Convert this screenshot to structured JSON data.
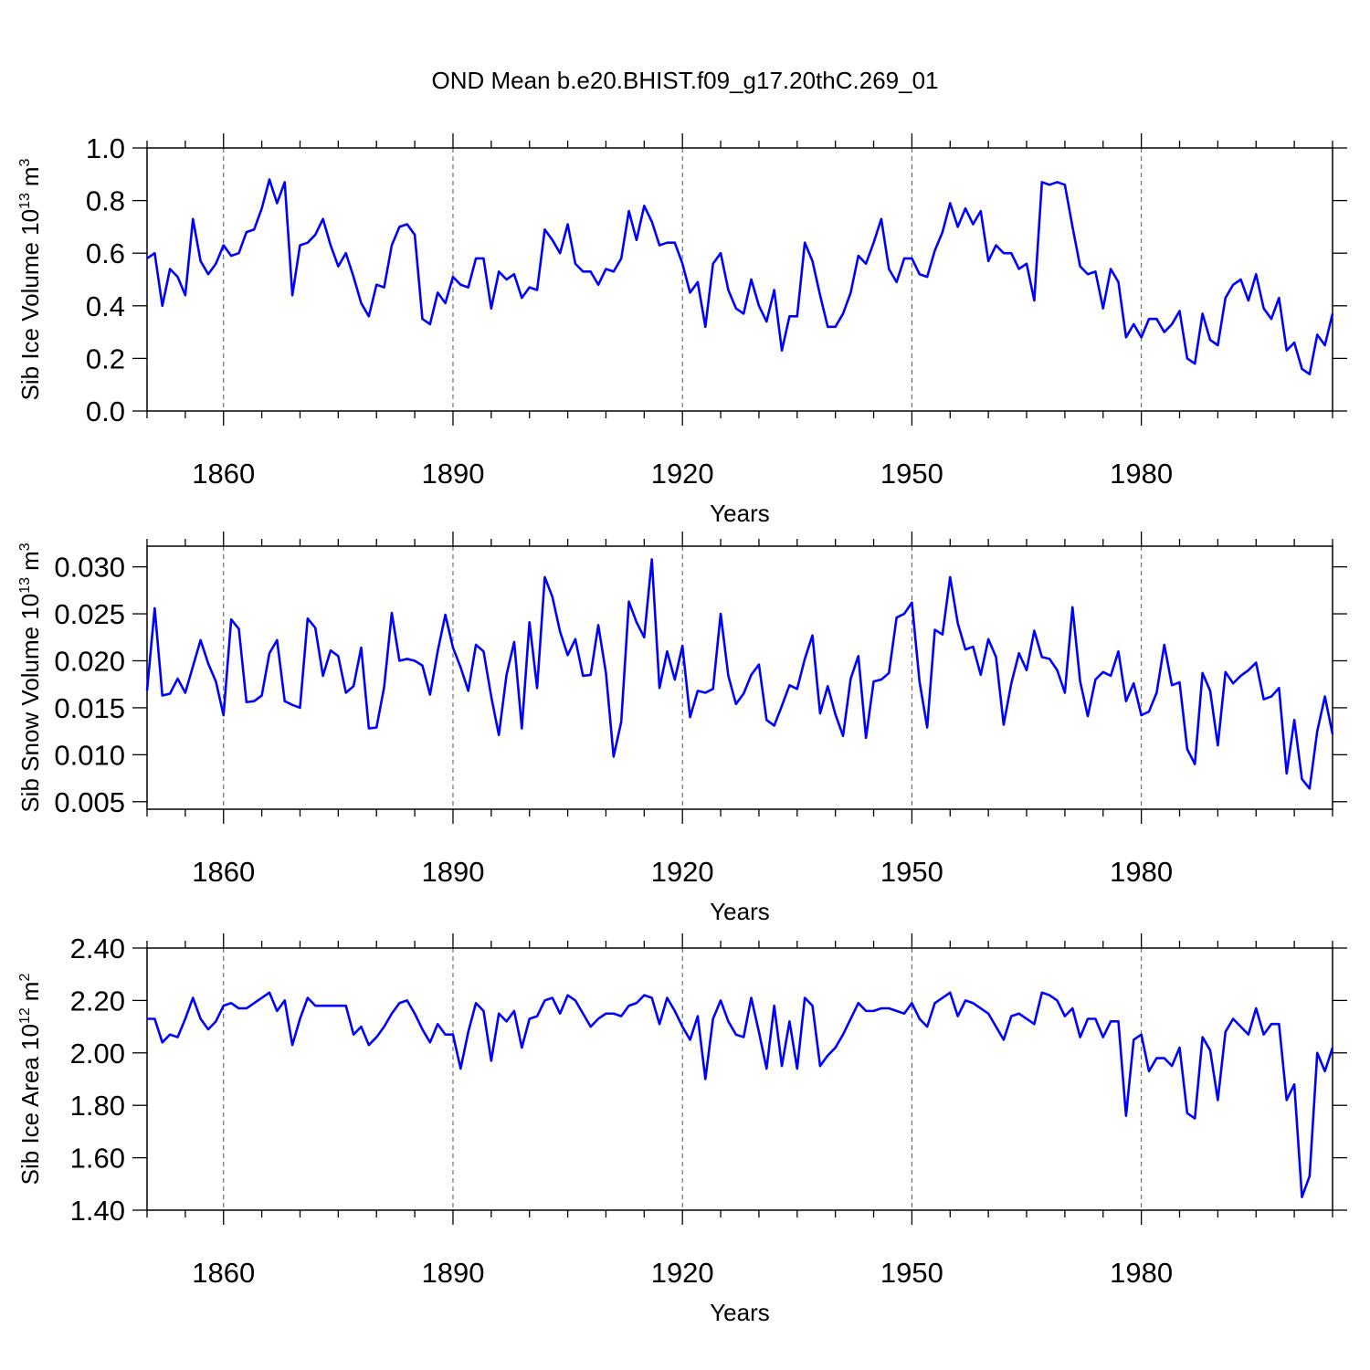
{
  "chart_data": [
    {
      "type": "line",
      "title": "OND Mean b.e20.BHIST.f09_g17.20thC.269_01",
      "xlabel": "Years",
      "ylabel": {
        "text": "Sib Ice Volume 10",
        "exponent": "13",
        "unit": "m",
        "unit_exponent": "3"
      },
      "color": "#0000ff",
      "xgrid": true,
      "xlim": [
        1850,
        2005
      ],
      "ylim": [
        0,
        1
      ],
      "xticks": [
        1860,
        1890,
        1920,
        1950,
        1980
      ],
      "xminorticks": [
        1850,
        1855,
        1865,
        1870,
        1875,
        1880,
        1885,
        1895,
        1900,
        1905,
        1910,
        1915,
        1925,
        1930,
        1935,
        1940,
        1945,
        1955,
        1960,
        1965,
        1970,
        1975,
        1985,
        1990,
        1995,
        2000,
        2005
      ],
      "yticks": [
        {
          "value": 0,
          "label": "0.0"
        },
        0.2,
        0.4,
        0.6,
        0.8,
        {
          "value": 1,
          "label": "1.0"
        }
      ],
      "x": [
        1850,
        1851,
        1852,
        1853,
        1854,
        1855,
        1856,
        1857,
        1858,
        1859,
        1860,
        1861,
        1862,
        1863,
        1864,
        1865,
        1866,
        1867,
        1868,
        1869,
        1870,
        1871,
        1872,
        1873,
        1874,
        1875,
        1876,
        1877,
        1878,
        1879,
        1880,
        1881,
        1882,
        1883,
        1884,
        1885,
        1886,
        1887,
        1888,
        1889,
        1890,
        1891,
        1892,
        1893,
        1894,
        1895,
        1896,
        1897,
        1898,
        1899,
        1900,
        1901,
        1902,
        1903,
        1904,
        1905,
        1906,
        1907,
        1908,
        1909,
        1910,
        1911,
        1912,
        1913,
        1914,
        1915,
        1916,
        1917,
        1918,
        1919,
        1920,
        1921,
        1922,
        1923,
        1924,
        1925,
        1926,
        1927,
        1928,
        1929,
        1930,
        1931,
        1932,
        1933,
        1934,
        1935,
        1936,
        1937,
        1938,
        1939,
        1940,
        1941,
        1942,
        1943,
        1944,
        1945,
        1946,
        1947,
        1948,
        1949,
        1950,
        1951,
        1952,
        1953,
        1954,
        1955,
        1956,
        1957,
        1958,
        1959,
        1960,
        1961,
        1962,
        1963,
        1964,
        1965,
        1966,
        1967,
        1968,
        1969,
        1970,
        1971,
        1972,
        1973,
        1974,
        1975,
        1976,
        1977,
        1978,
        1979,
        1980,
        1981,
        1982,
        1983,
        1984,
        1985,
        1986,
        1987,
        1988,
        1989,
        1990,
        1991,
        1992,
        1993,
        1994,
        1995,
        1996,
        1997,
        1998,
        1999,
        2000,
        2001,
        2002,
        2003,
        2004,
        2005
      ],
      "values": [
        0.58,
        0.6,
        0.4,
        0.54,
        0.51,
        0.44,
        0.73,
        0.57,
        0.52,
        0.56,
        0.63,
        0.59,
        0.6,
        0.68,
        0.69,
        0.77,
        0.88,
        0.79,
        0.87,
        0.44,
        0.63,
        0.64,
        0.67,
        0.73,
        0.63,
        0.55,
        0.6,
        0.51,
        0.41,
        0.36,
        0.48,
        0.47,
        0.63,
        0.7,
        0.71,
        0.67,
        0.35,
        0.33,
        0.45,
        0.41,
        0.51,
        0.48,
        0.47,
        0.58,
        0.58,
        0.39,
        0.53,
        0.5,
        0.52,
        0.43,
        0.47,
        0.46,
        0.69,
        0.65,
        0.6,
        0.71,
        0.56,
        0.53,
        0.53,
        0.48,
        0.54,
        0.53,
        0.58,
        0.76,
        0.65,
        0.78,
        0.72,
        0.63,
        0.64,
        0.64,
        0.56,
        0.45,
        0.49,
        0.32,
        0.56,
        0.6,
        0.46,
        0.39,
        0.37,
        0.5,
        0.4,
        0.34,
        0.46,
        0.23,
        0.36,
        0.36,
        0.64,
        0.57,
        0.44,
        0.32,
        0.32,
        0.37,
        0.45,
        0.59,
        0.56,
        0.64,
        0.73,
        0.54,
        0.49,
        0.58,
        0.58,
        0.52,
        0.51,
        0.61,
        0.68,
        0.79,
        0.7,
        0.77,
        0.71,
        0.76,
        0.57,
        0.63,
        0.6,
        0.6,
        0.54,
        0.56,
        0.42,
        0.87,
        0.86,
        0.87,
        0.86,
        0.7,
        0.55,
        0.52,
        0.53,
        0.39,
        0.54,
        0.49,
        0.28,
        0.33,
        0.28,
        0.35,
        0.35,
        0.3,
        0.33,
        0.38,
        0.2,
        0.18,
        0.37,
        0.27,
        0.25,
        0.43,
        0.48,
        0.5,
        0.42,
        0.52,
        0.39,
        0.35,
        0.43,
        0.23,
        0.26,
        0.16,
        0.14,
        0.29,
        0.25,
        0.37
      ]
    },
    {
      "type": "line",
      "xlabel": "Years",
      "ylabel": {
        "text": "Sib Snow Volume 10",
        "exponent": "13",
        "unit": "m",
        "unit_exponent": "3"
      },
      "color": "#0000ff",
      "xgrid": true,
      "xlim": [
        1850,
        2005
      ],
      "ylim": [
        0.0042,
        0.0322
      ],
      "xticks": [
        1860,
        1890,
        1920,
        1950,
        1980
      ],
      "xminorticks": [
        1850,
        1855,
        1865,
        1870,
        1875,
        1880,
        1885,
        1895,
        1900,
        1905,
        1910,
        1915,
        1925,
        1930,
        1935,
        1940,
        1945,
        1955,
        1960,
        1965,
        1970,
        1975,
        1985,
        1990,
        1995,
        2000,
        2005
      ],
      "yticks": [
        0.005,
        {
          "value": 0.01,
          "label": "0.010"
        },
        0.015,
        {
          "value": 0.02,
          "label": "0.020"
        },
        0.025,
        {
          "value": 0.03,
          "label": "0.030"
        }
      ],
      "x": [
        1850,
        1851,
        1852,
        1853,
        1854,
        1855,
        1856,
        1857,
        1858,
        1859,
        1860,
        1861,
        1862,
        1863,
        1864,
        1865,
        1866,
        1867,
        1868,
        1869,
        1870,
        1871,
        1872,
        1873,
        1874,
        1875,
        1876,
        1877,
        1878,
        1879,
        1880,
        1881,
        1882,
        1883,
        1884,
        1885,
        1886,
        1887,
        1888,
        1889,
        1890,
        1891,
        1892,
        1893,
        1894,
        1895,
        1896,
        1897,
        1898,
        1899,
        1900,
        1901,
        1902,
        1903,
        1904,
        1905,
        1906,
        1907,
        1908,
        1909,
        1910,
        1911,
        1912,
        1913,
        1914,
        1915,
        1916,
        1917,
        1918,
        1919,
        1920,
        1921,
        1922,
        1923,
        1924,
        1925,
        1926,
        1927,
        1928,
        1929,
        1930,
        1931,
        1932,
        1933,
        1934,
        1935,
        1936,
        1937,
        1938,
        1939,
        1940,
        1941,
        1942,
        1943,
        1944,
        1945,
        1946,
        1947,
        1948,
        1949,
        1950,
        1951,
        1952,
        1953,
        1954,
        1955,
        1956,
        1957,
        1958,
        1959,
        1960,
        1961,
        1962,
        1963,
        1964,
        1965,
        1966,
        1967,
        1968,
        1969,
        1970,
        1971,
        1972,
        1973,
        1974,
        1975,
        1976,
        1977,
        1978,
        1979,
        1980,
        1981,
        1982,
        1983,
        1984,
        1985,
        1986,
        1987,
        1988,
        1989,
        1990,
        1991,
        1992,
        1993,
        1994,
        1995,
        1996,
        1997,
        1998,
        1999,
        2000,
        2001,
        2002,
        2003,
        2004,
        2005
      ],
      "values": [
        0.0168,
        0.0256,
        0.0163,
        0.0165,
        0.0181,
        0.0166,
        0.0194,
        0.0222,
        0.0197,
        0.0178,
        0.0142,
        0.0244,
        0.0234,
        0.0156,
        0.0157,
        0.0163,
        0.0208,
        0.0222,
        0.0157,
        0.0153,
        0.015,
        0.0245,
        0.0235,
        0.0184,
        0.0211,
        0.0205,
        0.0166,
        0.0173,
        0.0214,
        0.0128,
        0.0129,
        0.0172,
        0.0251,
        0.02,
        0.0202,
        0.02,
        0.0195,
        0.0164,
        0.021,
        0.0249,
        0.0214,
        0.0193,
        0.0168,
        0.0217,
        0.021,
        0.0162,
        0.0121,
        0.0185,
        0.022,
        0.0128,
        0.0241,
        0.0171,
        0.0289,
        0.0268,
        0.0231,
        0.0206,
        0.0223,
        0.0184,
        0.0185,
        0.0238,
        0.0187,
        0.0098,
        0.0135,
        0.0263,
        0.0241,
        0.0225,
        0.0308,
        0.0171,
        0.021,
        0.018,
        0.0216,
        0.014,
        0.0168,
        0.0166,
        0.017,
        0.025,
        0.0184,
        0.0154,
        0.0165,
        0.0185,
        0.0196,
        0.0137,
        0.0131,
        0.0152,
        0.0174,
        0.017,
        0.0202,
        0.0227,
        0.0144,
        0.0173,
        0.0143,
        0.012,
        0.0181,
        0.0205,
        0.0118,
        0.0178,
        0.018,
        0.0187,
        0.0246,
        0.025,
        0.0262,
        0.0178,
        0.0129,
        0.0233,
        0.0228,
        0.0289,
        0.024,
        0.0212,
        0.0215,
        0.0185,
        0.0223,
        0.0204,
        0.0132,
        0.0176,
        0.0208,
        0.019,
        0.0232,
        0.0204,
        0.0202,
        0.019,
        0.0166,
        0.0257,
        0.0178,
        0.0141,
        0.018,
        0.0188,
        0.0184,
        0.021,
        0.0157,
        0.0176,
        0.0142,
        0.0146,
        0.0166,
        0.0217,
        0.0174,
        0.0177,
        0.0106,
        0.009,
        0.0187,
        0.0168,
        0.011,
        0.0188,
        0.0176,
        0.0184,
        0.019,
        0.0198,
        0.0159,
        0.0162,
        0.0171,
        0.008,
        0.0137,
        0.0074,
        0.0064,
        0.0125,
        0.0162,
        0.0122
      ]
    },
    {
      "type": "line",
      "xlabel": "Years",
      "ylabel": {
        "text": "Sib Ice Area 10",
        "exponent": "12",
        "unit": "m",
        "unit_exponent": "2"
      },
      "color": "#0000ff",
      "xgrid": true,
      "xlim": [
        1850,
        2005
      ],
      "ylim": [
        1.4,
        2.4
      ],
      "xticks": [
        1860,
        1890,
        1920,
        1950,
        1980
      ],
      "xminorticks": [
        1850,
        1855,
        1865,
        1870,
        1875,
        1880,
        1885,
        1895,
        1900,
        1905,
        1910,
        1915,
        1925,
        1930,
        1935,
        1940,
        1945,
        1955,
        1960,
        1965,
        1970,
        1975,
        1985,
        1990,
        1995,
        2000,
        2005
      ],
      "yticks": [
        {
          "value": 1.4,
          "label": "1.40"
        },
        {
          "value": 1.6,
          "label": "1.60"
        },
        {
          "value": 1.8,
          "label": "1.80"
        },
        {
          "value": 2,
          "label": "2.00"
        },
        {
          "value": 2.2,
          "label": "2.20"
        },
        {
          "value": 2.4,
          "label": "2.40"
        }
      ],
      "x": [
        1850,
        1851,
        1852,
        1853,
        1854,
        1855,
        1856,
        1857,
        1858,
        1859,
        1860,
        1861,
        1862,
        1863,
        1864,
        1865,
        1866,
        1867,
        1868,
        1869,
        1870,
        1871,
        1872,
        1873,
        1874,
        1875,
        1876,
        1877,
        1878,
        1879,
        1880,
        1881,
        1882,
        1883,
        1884,
        1885,
        1886,
        1887,
        1888,
        1889,
        1890,
        1891,
        1892,
        1893,
        1894,
        1895,
        1896,
        1897,
        1898,
        1899,
        1900,
        1901,
        1902,
        1903,
        1904,
        1905,
        1906,
        1907,
        1908,
        1909,
        1910,
        1911,
        1912,
        1913,
        1914,
        1915,
        1916,
        1917,
        1918,
        1919,
        1920,
        1921,
        1922,
        1923,
        1924,
        1925,
        1926,
        1927,
        1928,
        1929,
        1930,
        1931,
        1932,
        1933,
        1934,
        1935,
        1936,
        1937,
        1938,
        1939,
        1940,
        1941,
        1942,
        1943,
        1944,
        1945,
        1946,
        1947,
        1948,
        1949,
        1950,
        1951,
        1952,
        1953,
        1954,
        1955,
        1956,
        1957,
        1958,
        1959,
        1960,
        1961,
        1962,
        1963,
        1964,
        1965,
        1966,
        1967,
        1968,
        1969,
        1970,
        1971,
        1972,
        1973,
        1974,
        1975,
        1976,
        1977,
        1978,
        1979,
        1980,
        1981,
        1982,
        1983,
        1984,
        1985,
        1986,
        1987,
        1988,
        1989,
        1990,
        1991,
        1992,
        1993,
        1994,
        1995,
        1996,
        1997,
        1998,
        1999,
        2000,
        2001,
        2002,
        2003,
        2004,
        2005
      ],
      "values": [
        2.13,
        2.13,
        2.04,
        2.07,
        2.06,
        2.13,
        2.21,
        2.13,
        2.09,
        2.12,
        2.18,
        2.19,
        2.17,
        2.17,
        2.19,
        2.21,
        2.23,
        2.16,
        2.2,
        2.03,
        2.13,
        2.21,
        2.18,
        2.18,
        2.18,
        2.18,
        2.18,
        2.07,
        2.1,
        2.03,
        2.06,
        2.1,
        2.15,
        2.19,
        2.2,
        2.15,
        2.09,
        2.04,
        2.11,
        2.07,
        2.07,
        1.94,
        2.08,
        2.19,
        2.16,
        1.97,
        2.15,
        2.12,
        2.16,
        2.02,
        2.13,
        2.14,
        2.2,
        2.21,
        2.15,
        2.22,
        2.2,
        2.15,
        2.1,
        2.13,
        2.15,
        2.15,
        2.14,
        2.18,
        2.19,
        2.22,
        2.21,
        2.11,
        2.21,
        2.16,
        2.1,
        2.05,
        2.14,
        1.9,
        2.13,
        2.2,
        2.12,
        2.07,
        2.06,
        2.21,
        2.08,
        1.94,
        2.18,
        1.95,
        2.12,
        1.94,
        2.21,
        2.18,
        1.95,
        1.99,
        2.02,
        2.07,
        2.13,
        2.19,
        2.16,
        2.16,
        2.17,
        2.17,
        2.16,
        2.15,
        2.19,
        2.13,
        2.1,
        2.19,
        2.21,
        2.23,
        2.14,
        2.2,
        2.19,
        2.17,
        2.15,
        2.1,
        2.05,
        2.14,
        2.15,
        2.13,
        2.11,
        2.23,
        2.22,
        2.2,
        2.14,
        2.17,
        2.06,
        2.13,
        2.13,
        2.06,
        2.12,
        2.12,
        1.76,
        2.05,
        2.07,
        1.93,
        1.98,
        1.98,
        1.95,
        2.02,
        1.77,
        1.75,
        2.06,
        2.01,
        1.82,
        2.08,
        2.13,
        2.1,
        2.07,
        2.17,
        2.07,
        2.11,
        2.11,
        1.82,
        1.88,
        1.45,
        1.53,
        2.0,
        1.93,
        2.02
      ]
    }
  ]
}
